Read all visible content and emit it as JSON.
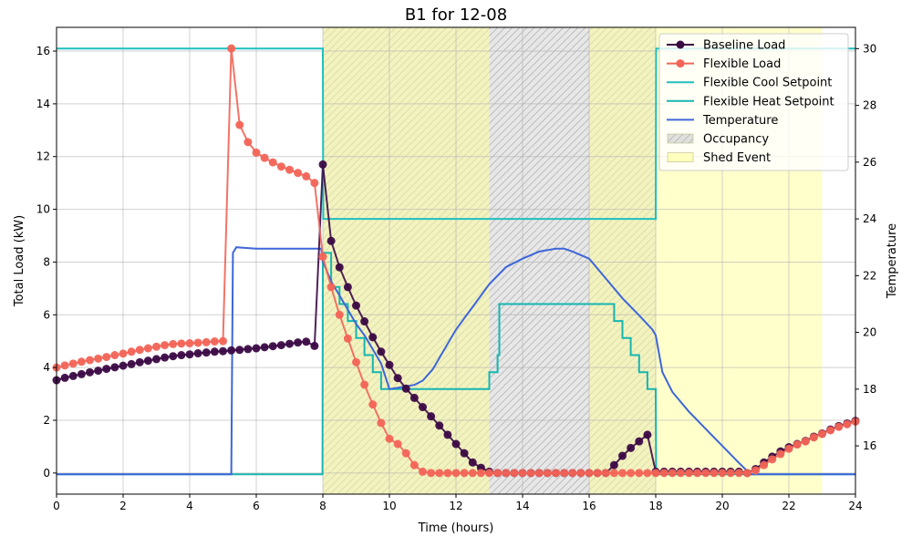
{
  "chart_data": {
    "type": "line",
    "title": "B1 for 12-08",
    "xlabel": "Time (hours)",
    "ylabel": "Total Load (kW)",
    "y2label": "Temperature",
    "xlim": [
      0,
      24
    ],
    "ylim": [
      -0.8,
      16.9
    ],
    "y2lim": [
      14.3,
      30.75
    ],
    "xticks": [
      "0",
      "2",
      "4",
      "6",
      "8",
      "10",
      "12",
      "14",
      "16",
      "18",
      "20",
      "22",
      "24"
    ],
    "yticks": [
      "0",
      "2",
      "4",
      "6",
      "8",
      "10",
      "12",
      "14",
      "16"
    ],
    "y2ticks": [
      "16",
      "18",
      "20",
      "22",
      "24",
      "26",
      "28",
      "30"
    ],
    "grid": true,
    "legend_position": "upper right",
    "shaded_regions": [
      {
        "name": "Occupancy",
        "x0": 8,
        "x1": 18,
        "color": "#d3d3d3",
        "hatch": true
      },
      {
        "name": "Shed Event",
        "x0": 8,
        "x1": 13,
        "color": "#ffff99"
      },
      {
        "name": "Shed Event",
        "x0": 16,
        "x1": 23,
        "color": "#ffff99"
      }
    ],
    "series": [
      {
        "name": "Baseline Load",
        "axis": "left",
        "color": "#3b0a45",
        "marker": true,
        "x": [
          0,
          0.25,
          0.5,
          0.75,
          1,
          1.25,
          1.5,
          1.75,
          2,
          2.25,
          2.5,
          2.75,
          3,
          3.25,
          3.5,
          3.75,
          4,
          4.25,
          4.5,
          4.75,
          5,
          5.25,
          5.5,
          5.75,
          6,
          6.25,
          6.5,
          6.75,
          7,
          7.25,
          7.5,
          7.75,
          8,
          8.25,
          8.5,
          8.75,
          9,
          9.25,
          9.5,
          9.75,
          10,
          10.25,
          10.5,
          10.75,
          11,
          11.25,
          11.5,
          11.75,
          12,
          12.25,
          12.5,
          12.75,
          13,
          13.25,
          13.5,
          13.75,
          14,
          14.25,
          14.5,
          14.75,
          15,
          15.25,
          15.5,
          15.75,
          16,
          16.25,
          16.5,
          16.75,
          17,
          17.25,
          17.5,
          17.75,
          18,
          18.25,
          18.5,
          18.75,
          19,
          19.25,
          19.5,
          19.75,
          20,
          20.25,
          20.5,
          20.75,
          21,
          21.25,
          21.5,
          21.75,
          22,
          22.25,
          22.5,
          22.75,
          23,
          23.25,
          23.5,
          23.75,
          24
        ],
        "y": [
          3.52,
          3.61,
          3.68,
          3.75,
          3.82,
          3.88,
          3.95,
          4.01,
          4.07,
          4.13,
          4.2,
          4.26,
          4.32,
          4.38,
          4.43,
          4.47,
          4.5,
          4.54,
          4.57,
          4.6,
          4.62,
          4.65,
          4.67,
          4.7,
          4.73,
          4.77,
          4.81,
          4.85,
          4.9,
          4.95,
          4.98,
          4.82,
          11.7,
          8.8,
          7.8,
          7.05,
          6.35,
          5.75,
          5.15,
          4.6,
          4.1,
          3.6,
          3.2,
          2.85,
          2.5,
          2.15,
          1.8,
          1.45,
          1.1,
          0.75,
          0.4,
          0.2,
          0.05,
          0,
          0,
          0,
          0,
          0,
          0,
          0,
          0,
          0,
          0,
          0,
          0,
          0,
          0,
          0.3,
          0.65,
          0.95,
          1.2,
          1.45,
          0.05,
          0.05,
          0.05,
          0.05,
          0.05,
          0.05,
          0.05,
          0.05,
          0.05,
          0.05,
          0.05,
          0,
          0.15,
          0.4,
          0.62,
          0.82,
          0.98,
          1.1,
          1.22,
          1.38,
          1.5,
          1.65,
          1.78,
          1.88,
          1.98
        ]
      },
      {
        "name": "Flexible Load",
        "axis": "left",
        "color": "#f26457",
        "marker": true,
        "x": [
          0,
          0.25,
          0.5,
          0.75,
          1,
          1.25,
          1.5,
          1.75,
          2,
          2.25,
          2.5,
          2.75,
          3,
          3.25,
          3.5,
          3.75,
          4,
          4.25,
          4.5,
          4.75,
          5,
          5.25,
          5.5,
          5.75,
          6,
          6.25,
          6.5,
          6.75,
          7,
          7.25,
          7.5,
          7.75,
          8,
          8.25,
          8.5,
          8.75,
          9,
          9.25,
          9.5,
          9.75,
          10,
          10.25,
          10.5,
          10.75,
          11,
          11.25,
          11.5,
          11.75,
          12,
          12.25,
          12.5,
          12.75,
          13,
          13.25,
          13.5,
          13.75,
          14,
          14.25,
          14.5,
          14.75,
          15,
          15.25,
          15.5,
          15.75,
          16,
          16.25,
          16.5,
          16.75,
          17,
          17.25,
          17.5,
          17.75,
          18,
          18.25,
          18.5,
          18.75,
          19,
          19.25,
          19.5,
          19.75,
          20,
          20.25,
          20.5,
          20.75,
          21,
          21.25,
          21.5,
          21.75,
          22,
          22.25,
          22.5,
          22.75,
          23,
          23.25,
          23.5,
          23.75,
          24
        ],
        "y": [
          4.0,
          4.08,
          4.15,
          4.22,
          4.28,
          4.34,
          4.4,
          4.47,
          4.53,
          4.6,
          4.67,
          4.73,
          4.79,
          4.85,
          4.89,
          4.91,
          4.92,
          4.94,
          4.96,
          4.99,
          5.0,
          16.1,
          13.2,
          12.55,
          12.15,
          11.95,
          11.78,
          11.62,
          11.5,
          11.38,
          11.25,
          11.0,
          8.2,
          7.05,
          6.0,
          5.1,
          4.2,
          3.35,
          2.6,
          1.9,
          1.3,
          1.1,
          0.75,
          0.3,
          0.05,
          0,
          0,
          0,
          0,
          0,
          0,
          0,
          0,
          0,
          0,
          0,
          0,
          0,
          0,
          0,
          0,
          0,
          0,
          0,
          0,
          0,
          0,
          0,
          0,
          0,
          0,
          0,
          0,
          0,
          0,
          0,
          0,
          0,
          0,
          0,
          0,
          0,
          0,
          0,
          0.1,
          0.3,
          0.52,
          0.72,
          0.92,
          1.08,
          1.2,
          1.35,
          1.48,
          1.62,
          1.75,
          1.85,
          1.95
        ]
      },
      {
        "name": "Flexible Cool Setpoint",
        "axis": "right",
        "color": "#1fbfbf",
        "marker": false,
        "x": [
          0,
          8.0,
          8.01,
          18.0,
          18.01,
          24
        ],
        "y": [
          30.0,
          30.0,
          24.0,
          24.0,
          30.0,
          30.0
        ]
      },
      {
        "name": "Flexible Heat Setpoint",
        "axis": "right",
        "color": "#16b5b0",
        "marker": false,
        "x": [
          0,
          7.99,
          8.0,
          8.25,
          8.25,
          8.5,
          8.5,
          8.75,
          8.75,
          9.0,
          9.0,
          9.25,
          9.25,
          9.5,
          9.5,
          9.75,
          9.75,
          10.0,
          10.0,
          13.0,
          13.0,
          13.25,
          13.25,
          13.3,
          13.3,
          16.75,
          16.75,
          17.0,
          17.0,
          17.25,
          17.25,
          17.5,
          17.5,
          17.75,
          17.75,
          18.0,
          18.01,
          24
        ],
        "y": [
          15.0,
          15.0,
          22.8,
          22.8,
          21.6,
          21.6,
          21.0,
          21.0,
          20.4,
          20.4,
          19.8,
          19.8,
          19.2,
          19.2,
          18.6,
          18.6,
          18.0,
          18.0,
          18.0,
          18.0,
          18.6,
          18.6,
          19.2,
          19.2,
          21.0,
          21.0,
          20.4,
          20.4,
          19.8,
          19.8,
          19.2,
          19.2,
          18.6,
          18.6,
          18.0,
          18.0,
          15.0,
          15.0
        ]
      },
      {
        "name": "Temperature",
        "axis": "right",
        "color": "#3d66d9",
        "marker": false,
        "x": [
          0,
          5.25,
          5.3,
          5.4,
          5.6,
          6,
          7,
          7.95,
          8.0,
          8.25,
          8.5,
          8.75,
          9,
          9.25,
          9.5,
          9.75,
          10.0,
          10.25,
          10.5,
          10.75,
          11,
          11.3,
          11.6,
          12,
          12.5,
          13,
          13.5,
          14,
          14.5,
          15,
          15.25,
          15.5,
          16,
          16.5,
          17,
          17.5,
          17.9,
          18.0,
          18.2,
          18.5,
          19,
          19.5,
          20,
          20.5,
          20.85,
          21.0,
          22,
          24
        ],
        "y": [
          15.0,
          15.0,
          22.8,
          23.0,
          22.98,
          22.95,
          22.95,
          22.95,
          22.5,
          21.8,
          21.3,
          20.8,
          20.3,
          19.9,
          19.4,
          18.9,
          18.0,
          18.05,
          18.1,
          18.15,
          18.3,
          18.7,
          19.3,
          20.1,
          20.9,
          21.7,
          22.3,
          22.6,
          22.85,
          22.95,
          22.95,
          22.85,
          22.6,
          21.9,
          21.2,
          20.6,
          20.1,
          19.9,
          18.6,
          17.9,
          17.2,
          16.6,
          16.0,
          15.4,
          15.0,
          15.0,
          15.0,
          15.0
        ]
      }
    ],
    "legend": [
      "Baseline Load",
      "Flexible Load",
      "Flexible Cool Setpoint",
      "Flexible Heat Setpoint",
      "Temperature",
      "Occupancy",
      "Shed Event"
    ]
  }
}
